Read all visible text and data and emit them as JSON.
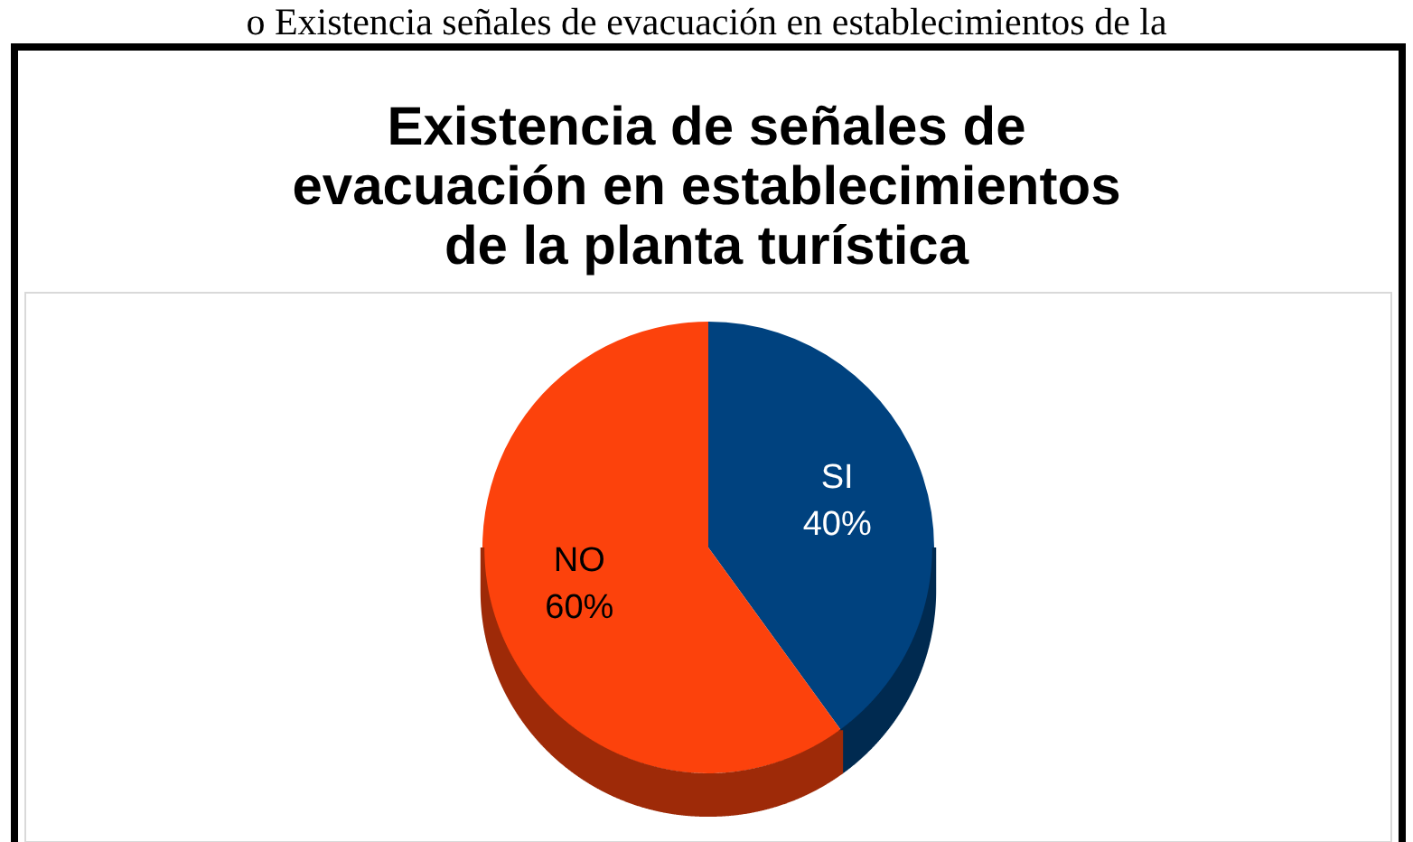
{
  "chart_data": {
    "type": "pie",
    "title": "Existencia de señales de evacuación en establecimientos de la planta turística",
    "annotations": [
      "o Existencia señales de evacuación en establecimientos de la"
    ],
    "categories": [
      "SI",
      "NO"
    ],
    "values": [
      40,
      60
    ],
    "colors": [
      "#00427f",
      "#fc420c"
    ],
    "value_labels": [
      "40%",
      "60%"
    ]
  }
}
